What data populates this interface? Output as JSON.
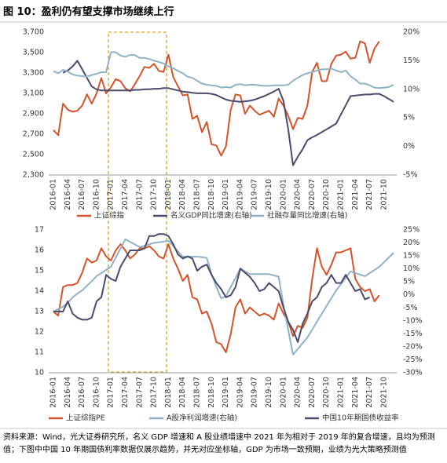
{
  "title": "图 10：盈利仍有望支撑市场继续上行",
  "source": "资料来源：Wind，光大证券研究所，名义 GDP 增速和 A 股业绩增速中 2021 年为相对于 2019 年的复合增速，且均为预测值；下图中中国 10 年期国债利率数据仅展示趋势，并无对应坐标轴，GDP 为市场一致预期，业绩为光大策略预测值",
  "chart_data": [
    {
      "type": "line",
      "categories": [
        "2016-01",
        null,
        null,
        "2016-04",
        null,
        null,
        "2016-07",
        null,
        null,
        "2016-10",
        null,
        null,
        "2017-01",
        null,
        null,
        "2017-04",
        null,
        null,
        "2017-07",
        null,
        null,
        "2017-10",
        null,
        null,
        "2018-01",
        null,
        null,
        "2018-04",
        null,
        null,
        "2018-07",
        null,
        null,
        "2018-10",
        null,
        null,
        "2019-01",
        null,
        null,
        "2019-04",
        null,
        null,
        "2019-07",
        null,
        null,
        "2019-10",
        null,
        null,
        "2020-01",
        null,
        null,
        "2020-04",
        null,
        null,
        "2020-07",
        null,
        null,
        "2020-10",
        null,
        null,
        "2021-01",
        null,
        null,
        "2021-04",
        null,
        null,
        "2021-07",
        null,
        null,
        "2021-10",
        null,
        null
      ],
      "ylim": [
        2300,
        3700
      ],
      "yticks": [
        {
          "value": 2300,
          "label": "2,300"
        },
        {
          "value": 2500,
          "label": "2,500"
        },
        {
          "value": 2700,
          "label": "2,700"
        },
        {
          "value": 2900,
          "label": "2,900"
        },
        {
          "value": 3100,
          "label": "3,100"
        },
        {
          "value": 3300,
          "label": "3,300"
        },
        {
          "value": 3500,
          "label": "3,500"
        },
        {
          "value": 3700,
          "label": "3,700"
        }
      ],
      "y2lim": [
        -5,
        20
      ],
      "y2ticks": [
        {
          "value": -5,
          "label": "-5%"
        },
        {
          "value": 0,
          "label": "0%"
        },
        {
          "value": 5,
          "label": "5%"
        },
        {
          "value": 10,
          "label": "10%"
        },
        {
          "value": 15,
          "label": "15%"
        },
        {
          "value": 20,
          "label": "20%"
        }
      ],
      "series": [
        {
          "name": "上证综指",
          "color": "#d4532b",
          "values": [
            2740,
            2690,
            3000,
            2940,
            2920,
            2930,
            2980,
            3090,
            3000,
            3100,
            3250,
            3100,
            3160,
            3240,
            3220,
            3150,
            3120,
            3190,
            3270,
            3360,
            3350,
            3390,
            3320,
            3310,
            3480,
            3260,
            3170,
            3080,
            3090,
            2850,
            2880,
            2720,
            2820,
            2600,
            2590,
            2490,
            2580,
            2940,
            3090,
            3080,
            2900,
            2980,
            2930,
            2890,
            2910,
            2930,
            2870,
            3050,
            2980,
            2880,
            2750,
            2860,
            2850,
            2980,
            3310,
            3400,
            3220,
            3220,
            3390,
            3470,
            3480,
            3510,
            3440,
            3450,
            3610,
            3590,
            3400,
            3540,
            3610,
            null,
            null,
            null
          ]
        },
        {
          "name": "名义GDP同比增速(右轴)",
          "color": "#4b4a6b",
          "axis": "y2",
          "values": [
            null,
            null,
            12.9,
            13.3,
            14.0,
            15.0,
            13.5,
            12.0,
            10.5,
            10.0,
            9.8,
            9.8,
            9.8,
            9.8,
            9.8,
            9.8,
            9.8,
            9.9,
            9.9,
            10.0,
            10.0,
            10.1,
            10.1,
            10.2,
            10.2,
            10.0,
            9.8,
            9.6,
            9.5,
            9.4,
            9.3,
            9.3,
            9.3,
            9.2,
            9.0,
            8.6,
            8.2,
            8.0,
            7.9,
            7.8,
            7.9,
            8.0,
            8.2,
            8.5,
            8.8,
            9.2,
            9.6,
            10.1,
            8.0,
            3.0,
            -3.3,
            -1.8,
            -0.5,
            1.1,
            1.6,
            2.0,
            2.5,
            3.0,
            3.5,
            4.0,
            5.6,
            7.2,
            8.8,
            8.9,
            9.0,
            9.1,
            9.1,
            9.2,
            9.2,
            8.8,
            8.3,
            7.8
          ]
        },
        {
          "name": "社融存量同比增速(右轴)",
          "color": "#8fb3c4",
          "axis": "y2",
          "values": [
            13.2,
            12.8,
            13.4,
            13.1,
            12.6,
            12.4,
            12.3,
            12.2,
            12.5,
            12.7,
            13.0,
            13.0,
            16.5,
            16.5,
            15.9,
            15.7,
            16.0,
            16.0,
            15.5,
            15.5,
            15.3,
            15.0,
            14.8,
            14.5,
            14.0,
            13.7,
            13.2,
            12.8,
            12.2,
            12.0,
            11.5,
            11.0,
            10.8,
            10.7,
            10.6,
            10.3,
            10.4,
            10.3,
            10.8,
            10.9,
            10.7,
            10.8,
            10.8,
            10.7,
            10.6,
            10.6,
            10.7,
            10.7,
            10.7,
            10.8,
            11.5,
            12.0,
            12.5,
            12.8,
            13.0,
            13.3,
            13.5,
            13.5,
            13.6,
            13.3,
            13.0,
            13.3,
            12.3,
            11.7,
            11.0,
            11.0,
            10.7,
            10.3,
            10.2,
            10.3,
            10.4,
            10.8
          ]
        }
      ]
    },
    {
      "type": "line",
      "categories": [
        "2016-01",
        null,
        null,
        "2016-04",
        null,
        null,
        "2016-07",
        null,
        null,
        "2016-10",
        null,
        null,
        "2017-01",
        null,
        null,
        "2017-04",
        null,
        null,
        "2017-07",
        null,
        null,
        "2017-10",
        null,
        null,
        "2018-01",
        null,
        null,
        "2018-04",
        null,
        null,
        "2018-07",
        null,
        null,
        "2018-10",
        null,
        null,
        "2019-01",
        null,
        null,
        "2019-04",
        null,
        null,
        "2019-07",
        null,
        null,
        "2019-10",
        null,
        null,
        "2020-01",
        null,
        null,
        "2020-04",
        null,
        null,
        "2020-07",
        null,
        null,
        "2020-10",
        null,
        null,
        "2021-01",
        null,
        null,
        "2021-04",
        null,
        null,
        "2021-07",
        null,
        null,
        "2021-10",
        null,
        null
      ],
      "ylim": [
        10,
        17
      ],
      "yticks": [
        10,
        11,
        12,
        13,
        14,
        15,
        16,
        17
      ],
      "y2lim": [
        -30,
        25
      ],
      "y2ticks": [
        {
          "value": -30,
          "label": "-30%"
        },
        {
          "value": -25,
          "label": "-25%"
        },
        {
          "value": -20,
          "label": "-20%"
        },
        {
          "value": -15,
          "label": "-15%"
        },
        {
          "value": -10,
          "label": "-10%"
        },
        {
          "value": -5,
          "label": "-5%"
        },
        {
          "value": 0,
          "label": "0%"
        },
        {
          "value": 5,
          "label": "5%"
        },
        {
          "value": 10,
          "label": "10%"
        },
        {
          "value": 15,
          "label": "15%"
        },
        {
          "value": 20,
          "label": "20%"
        },
        {
          "value": 25,
          "label": "25%"
        }
      ],
      "series": [
        {
          "name": "上证综指PE",
          "color": "#d4532b",
          "values": [
            13.0,
            12.8,
            14.2,
            14.3,
            14.3,
            14.4,
            14.9,
            15.6,
            15.4,
            15.5,
            16.1,
            15.7,
            15.5,
            16.0,
            16.3,
            16.0,
            15.6,
            15.8,
            16.1,
            16.1,
            16.2,
            16.0,
            15.7,
            15.6,
            16.3,
            15.6,
            15.1,
            14.5,
            14.8,
            13.7,
            13.6,
            12.9,
            13.0,
            12.4,
            11.5,
            11.4,
            11.0,
            11.9,
            13.2,
            13.6,
            12.9,
            13.2,
            13.0,
            12.8,
            12.9,
            12.8,
            12.6,
            13.4,
            12.9,
            12.5,
            11.8,
            12.3,
            12.2,
            12.7,
            14.6,
            16.1,
            15.2,
            14.8,
            15.3,
            15.9,
            15.9,
            16.0,
            16.1,
            14.6,
            14.2,
            14.0,
            14.1,
            13.5,
            13.8,
            null,
            null,
            null
          ]
        },
        {
          "name": "A股净利润增速(右轴)",
          "color": "#8fb3c4",
          "axis": "y2",
          "values": [
            -6.4,
            -5.5,
            -4.5,
            -3.0,
            -1.0,
            0.5,
            1.7,
            3.5,
            5.3,
            7.2,
            8.4,
            9.6,
            10.8,
            14.3,
            17.8,
            21.4,
            20.4,
            19.4,
            18.4,
            18.9,
            19.5,
            20.0,
            20.3,
            20.5,
            20.8,
            18.8,
            16.7,
            14.7,
            14.7,
            14.7,
            14.7,
            14.5,
            14.2,
            8.0,
            3.0,
            -1.3,
            -0.5,
            3.0,
            6.5,
            10.2,
            9.0,
            8.0,
            8.0,
            8.0,
            8.0,
            8.0,
            7.5,
            7.0,
            -4.0,
            -13.5,
            -23.0,
            -20.8,
            -18.6,
            -16.4,
            -13.4,
            -10.3,
            -7.3,
            -4.3,
            -1.3,
            1.7,
            4.1,
            6.5,
            9.0,
            8.4,
            7.8,
            7.2,
            8.4,
            9.6,
            10.8,
            12.6,
            14.4,
            16.2
          ]
        },
        {
          "name": "中国10年期国债收益率",
          "color": "#4b4a6b",
          "values": [
            13.0,
            13.0,
            13.0,
            13.5,
            12.9,
            12.7,
            12.6,
            12.6,
            12.7,
            13.5,
            13.7,
            14.8,
            14.6,
            14.5,
            15.2,
            15.6,
            16.0,
            16.0,
            16.0,
            16.1,
            16.7,
            16.7,
            16.8,
            16.8,
            16.7,
            16.3,
            15.8,
            15.6,
            15.7,
            15.6,
            15.0,
            15.2,
            15.3,
            14.8,
            14.4,
            14.1,
            13.7,
            13.8,
            14.2,
            15.1,
            14.9,
            14.7,
            14.4,
            14.0,
            14.1,
            14.4,
            14.2,
            14.0,
            13.2,
            12.5,
            12.1,
            11.5,
            12.4,
            12.9,
            13.5,
            13.7,
            14.2,
            14.4,
            14.8,
            14.4,
            14.4,
            14.8,
            14.4,
            14.0,
            14.1,
            13.6,
            13.7,
            null,
            null,
            null,
            null,
            null
          ]
        }
      ]
    }
  ]
}
